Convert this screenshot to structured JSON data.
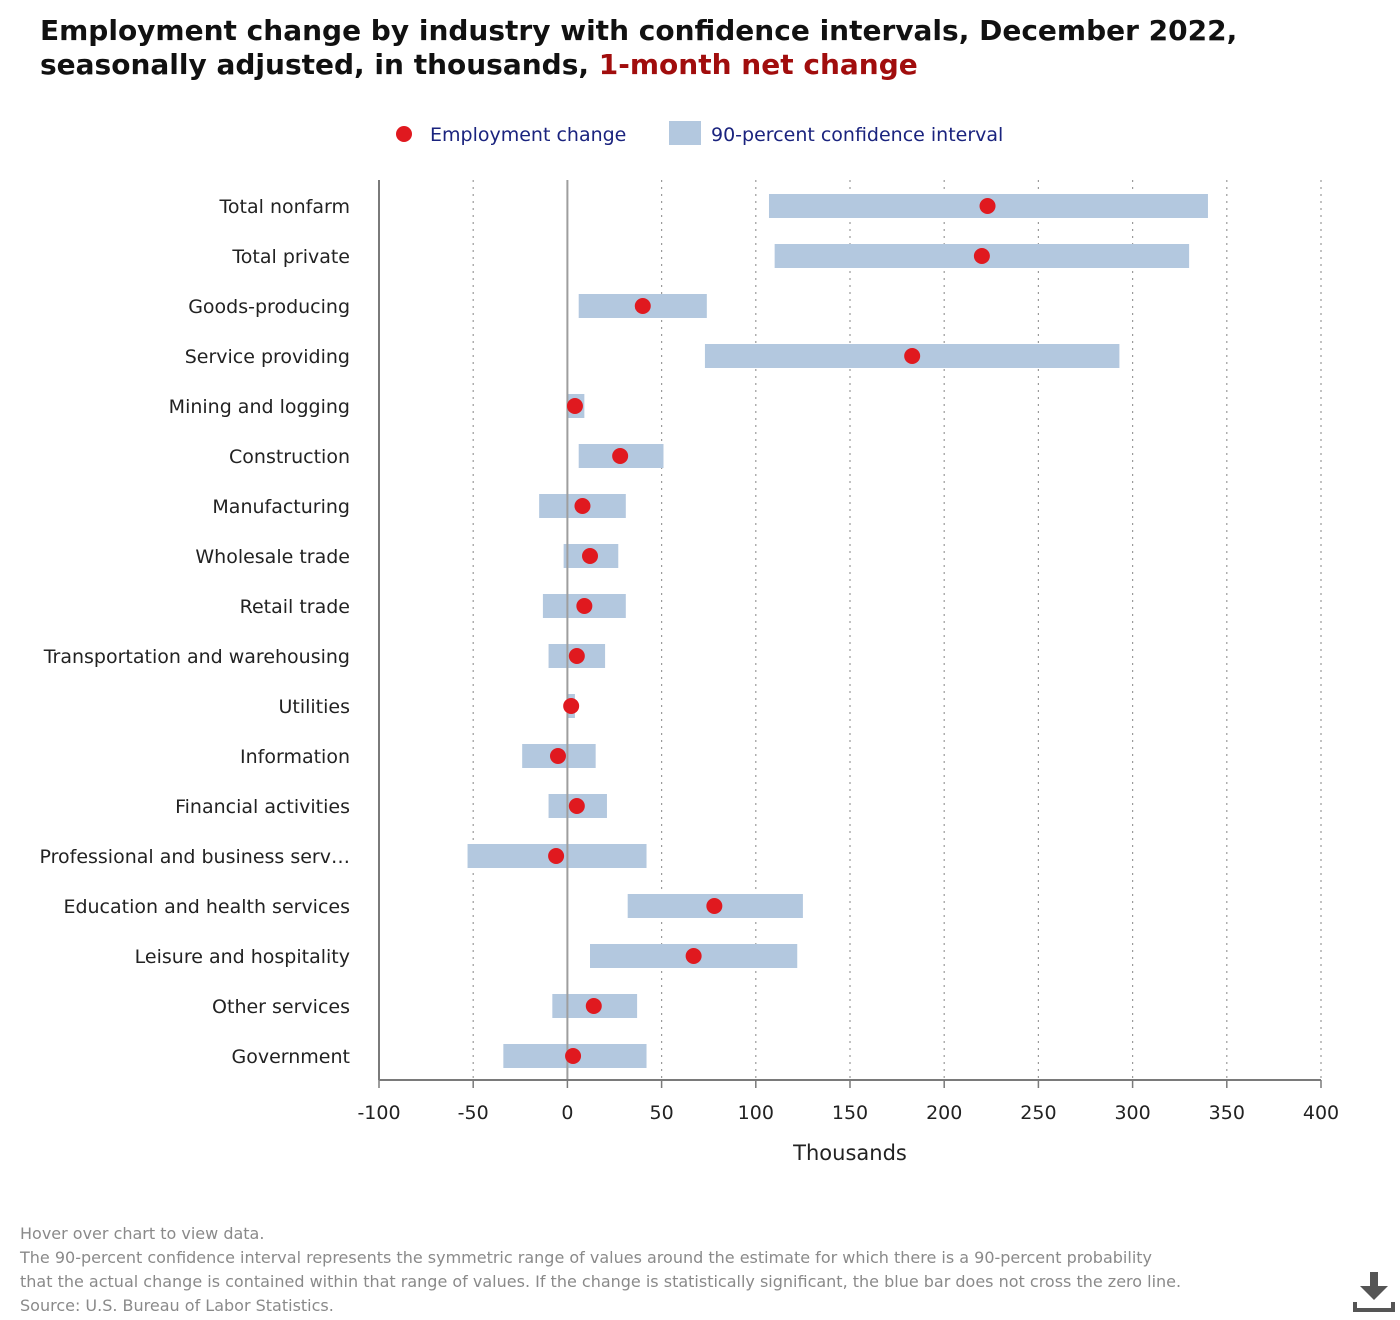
{
  "title": {
    "line1": "Employment change by industry with confidence intervals, December 2022,",
    "line2": "seasonally adjusted, in thousands,",
    "accent": "1-month net change"
  },
  "colors": {
    "dot": "#e0191f",
    "interval": "#b3c8df",
    "legend_text": "#1a237e",
    "title_accent": "#a10d0d"
  },
  "legend": {
    "dot_label": "Employment change",
    "bar_label": "90-percent confidence interval"
  },
  "chart_data": {
    "type": "dot-interval",
    "xlabel": "Thousands",
    "xlim": [
      -100,
      400
    ],
    "xticks": [
      -100,
      -50,
      0,
      50,
      100,
      150,
      200,
      250,
      300,
      350,
      400
    ],
    "grid": "vertical dotted",
    "legend_position": "top-center",
    "categories": [
      "Total nonfarm",
      "Total private",
      "Goods-producing",
      "Service providing",
      "Mining and logging",
      "Construction",
      "Manufacturing",
      "Wholesale trade",
      "Retail trade",
      "Transportation and warehousing",
      "Utilities",
      "Information",
      "Financial activities",
      "Professional and business serv…",
      "Education and health services",
      "Leisure and hospitality",
      "Other services",
      "Government"
    ],
    "series": [
      {
        "name": "Employment change",
        "values": [
          223,
          220,
          40,
          183,
          4,
          28,
          8,
          12,
          9,
          5,
          2,
          -5,
          5,
          -6,
          78,
          67,
          14,
          3
        ]
      },
      {
        "name": "90-percent confidence interval",
        "low": [
          107,
          110,
          6,
          73,
          0,
          6,
          -15,
          -2,
          -13,
          -10,
          0,
          -24,
          -10,
          -53,
          32,
          12,
          -8,
          -34
        ],
        "high": [
          340,
          330,
          74,
          293,
          9,
          51,
          31,
          27,
          31,
          20,
          4,
          15,
          21,
          42,
          125,
          122,
          37,
          42
        ]
      }
    ]
  },
  "footnotes": {
    "hover": "Hover over chart to view data.",
    "note1": "The 90-percent confidence interval represents the symmetric range of values around the estimate for which there is a 90-percent probability",
    "note2": "that the actual change is contained within that range of values. If the change is statistically significant, the blue bar does not cross the zero line.",
    "source": "Source: U.S. Bureau of Labor Statistics."
  },
  "download_icon": "download-icon"
}
